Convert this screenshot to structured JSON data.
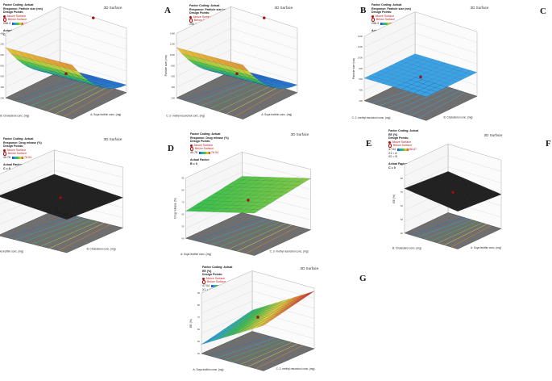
{
  "panels": [
    {
      "id": "A",
      "title": "3D Surface",
      "legend": {
        "coding": "Factor Coding: Actual",
        "response": "Response: Particle size (nm)",
        "design": "Design Points:",
        "above": "Above Surface",
        "below": "Below Surface",
        "low": "296.3",
        "high": "1919.6",
        "actual": "Actual Factor:",
        "fixed": "C = 0"
      },
      "axes": {
        "z": "Particle size (nm)",
        "x": "B: Cholesterol conc. (mg)",
        "y": "A: Soya lecithin conc. (mg)"
      },
      "surface": "curved",
      "colors": "rainbow",
      "zticks": [
        "200",
        "400",
        "600",
        "800",
        "1000",
        "1200",
        "1400"
      ]
    },
    {
      "id": "B",
      "title": "3D Surface",
      "legend": {
        "coding": "Factor Coding: Actual",
        "response": "Response: Particle size (nm)",
        "design": "Design Points:",
        "above": "Above Surface",
        "below": "Below Surface",
        "low": "296.3",
        "high": "1919.6",
        "actual": "Actual Factor:",
        "fixed": "B = 0"
      },
      "axes": {
        "z": "Particle size (nm)",
        "x": "C: 2- methyl resorcinol conc. (mg)",
        "y": "A: Soya lecithin conc. (mg)"
      },
      "surface": "curved",
      "colors": "rainbow",
      "zticks": [
        "200",
        "400",
        "600",
        "800",
        "1000",
        "1200",
        "1400"
      ]
    },
    {
      "id": "C",
      "title": "3D Surface",
      "legend": {
        "coding": "Factor Coding: Actual",
        "response": "Response: Particle size (nm)",
        "design": "Design Points:",
        "above": "Above Surface",
        "below": "Below Surface",
        "low": "296.3",
        "high": "1919.6",
        "actual": "Actual Factor:",
        "fixed": "A = 0"
      },
      "axes": {
        "z": "Particle size (nm)",
        "x": "C: 2- methyl resorcinol conc. (mg)",
        "y": "B: Cholesterol conc. (mg)"
      },
      "surface": "flat",
      "colors": "blue",
      "zticks": [
        "200",
        "400",
        "600",
        "800",
        "1000",
        "1200",
        "1400"
      ]
    },
    {
      "id": "D",
      "title": "3D Surface",
      "legend": {
        "coding": "Factor Coding: Actual",
        "response": "Response: Drug release (%)",
        "design": "Design Points:",
        "above": "Above Surface",
        "below": "Below Surface",
        "low": "40.76",
        "high": "78.54",
        "actual": "Actual Factor:",
        "fixed": "C = 0"
      },
      "axes": {
        "z": "Drug release (%)",
        "x": "A: Soya lecithin conc. (mg)",
        "y": "B: Cholesterol conc. (mg)"
      },
      "surface": "line",
      "colors": "dark",
      "zticks": [
        "40",
        "50",
        "60",
        "70",
        "80",
        "90"
      ]
    },
    {
      "id": "E",
      "title": "3D Surface",
      "legend": {
        "coding": "Factor Coding: Actual",
        "response": "Response: Drug release (%)",
        "design": "Design Points:",
        "above": "Above Surface",
        "below": "Below Surface",
        "low": "40.76",
        "high": "78.54",
        "actual": "Actual Factor:",
        "fixed": "B = 0"
      },
      "axes": {
        "z": "Drug release (%)",
        "x": "A: Soya lecithin conc. (mg)",
        "y": "C: 2- methyl resorcinol conc. (mg)"
      },
      "surface": "thin",
      "colors": "green",
      "zticks": [
        "40",
        "50",
        "60",
        "70",
        "80",
        "90"
      ]
    },
    {
      "id": "F",
      "title": "3D Surface",
      "legend": {
        "coding": "Factor Coding: Actual",
        "response": "EE (%)",
        "design": "Design Points:",
        "above": "Above Surface",
        "below": "Below Surface",
        "low": "47.04",
        "high": "88.67",
        "actual": "Actual Factor",
        "fixed": "C = 0",
        "x1": "X1 = A",
        "x2": "X2 = B"
      },
      "axes": {
        "z": "EE (%)",
        "x": "B: Cholesterol conc. (mg)",
        "y": "A: Soya lecithin conc. (mg)"
      },
      "surface": "line",
      "colors": "dark",
      "zticks": [
        "40",
        "50",
        "60",
        "70",
        "80",
        "90"
      ]
    },
    {
      "id": "G",
      "title": "3D Surface",
      "legend": {
        "coding": "Factor Coding: Actual",
        "response": "EE (%)",
        "design": "Design Points:",
        "above": "Above Surface",
        "below": "Below Surface",
        "low": "47.04",
        "high": "88.67",
        "actual": "Actual Factor",
        "fixed": "B = 0",
        "x1": "X1 = C",
        "x2": "X2 = A"
      },
      "axes": {
        "z": "EE (%)",
        "x": "A: Soya lecithin conc. (mg)",
        "y": "C: 2- methyl resorcinol conc. (mg)"
      },
      "surface": "tilted",
      "colors": "rainbow",
      "zticks": [
        "40",
        "50",
        "60",
        "70",
        "80",
        "90"
      ]
    }
  ],
  "chart_data": [
    {
      "type": "surface",
      "title": "3D Surface",
      "z_label": "Particle size (nm)",
      "x_label": "B: Cholesterol conc. (mg)",
      "y_label": "A: Soya lecithin conc. (mg)",
      "zlim": [
        200,
        1400
      ],
      "design_point_z": [
        1390,
        600
      ]
    },
    {
      "type": "surface",
      "title": "3D Surface",
      "z_label": "Particle size (nm)",
      "x_label": "C: 2- methyl resorcinol conc. (mg)",
      "y_label": "A: Soya lecithin conc. (mg)",
      "zlim": [
        200,
        1400
      ],
      "design_point_z": [
        1390,
        600
      ]
    },
    {
      "type": "surface",
      "title": "3D Surface",
      "z_label": "Particle size (nm)",
      "x_label": "C: 2- methyl resorcinol conc. (mg)",
      "y_label": "B: Cholesterol conc. (mg)",
      "zlim": [
        200,
        1400
      ],
      "design_point_z": [
        600
      ]
    },
    {
      "type": "surface",
      "title": "3D Surface",
      "z_label": "Drug release (%)",
      "x_label": "A: Soya lecithin conc. (mg)",
      "y_label": "B: Cholesterol conc. (mg)",
      "zlim": [
        40,
        90
      ],
      "design_point_z": [
        68
      ]
    },
    {
      "type": "surface",
      "title": "3D Surface",
      "z_label": "Drug release (%)",
      "x_label": "A: Soya lecithin conc. (mg)",
      "y_label": "C: 2- methyl resorcinol conc. (mg)",
      "zlim": [
        40,
        90
      ],
      "design_point_z": [
        68
      ]
    },
    {
      "type": "surface",
      "title": "3D Surface",
      "z_label": "EE (%)",
      "x_label": "B: Cholesterol conc. (mg)",
      "y_label": "A: Soya lecithin conc. (mg)",
      "zlim": [
        40,
        90
      ],
      "design_point_z": [
        68
      ]
    },
    {
      "type": "surface",
      "title": "3D Surface",
      "z_label": "EE (%)",
      "x_label": "A: Soya lecithin conc. (mg)",
      "y_label": "C: 2- methyl resorcinol conc. (mg)",
      "zlim": [
        40,
        90
      ],
      "design_point_z": [
        68
      ]
    }
  ]
}
